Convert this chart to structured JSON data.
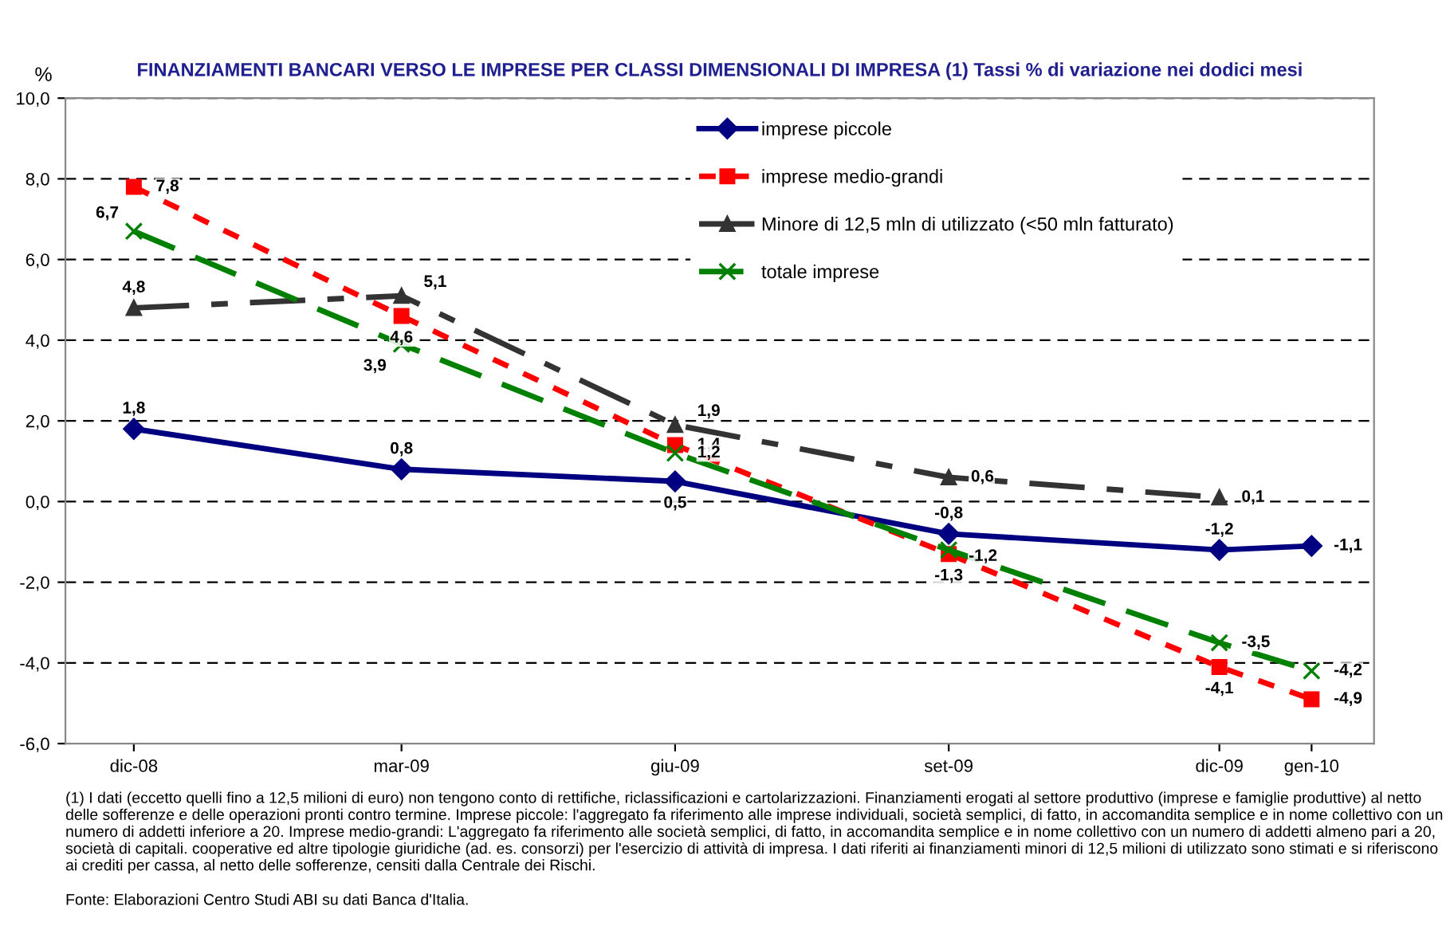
{
  "chart_data": {
    "type": "line",
    "title": "FINANZIAMENTI BANCARI VERSO LE IMPRESE PER CLASSI DIMENSIONALI DI IMPRESA (1) Tassi % di variazione nei dodici mesi",
    "ylabel": "%",
    "x": [
      "2008-12",
      "2009-03",
      "2009-06",
      "2009-09",
      "2009-12",
      "2010-01"
    ],
    "xlim": [
      "2008-11-08",
      "2010-01-22"
    ],
    "xticks": [
      {
        "value": "2008-12",
        "label": "dic-08"
      },
      {
        "value": "2009-03",
        "label": "mar-09"
      },
      {
        "value": "2009-06",
        "label": "giu-09"
      },
      {
        "value": "2009-09",
        "label": "set-09"
      },
      {
        "value": "2009-12",
        "label": "dic-09"
      },
      {
        "value": "2010-01",
        "label": "gen-10"
      }
    ],
    "ylim": [
      -6,
      10
    ],
    "yticks": [
      {
        "value": -6,
        "label": "-6,0"
      },
      {
        "value": -4,
        "label": "-4,0"
      },
      {
        "value": -2,
        "label": "-2,0"
      },
      {
        "value": 0,
        "label": "0,0"
      },
      {
        "value": 2,
        "label": "2,0"
      },
      {
        "value": 4,
        "label": "4,0"
      },
      {
        "value": 6,
        "label": "6,0"
      },
      {
        "value": 8,
        "label": "8,0"
      },
      {
        "value": 10,
        "label": "10,0"
      }
    ],
    "grid": "y",
    "legend": "top right",
    "series": [
      {
        "name": "imprese piccole",
        "color": "#000080",
        "marker": "diamond",
        "line_style": "solid",
        "values": [
          1.8,
          0.8,
          0.5,
          -0.8,
          -1.2,
          -1.1
        ],
        "value_labels": [
          "1,8",
          "0,8",
          "0,5",
          "-0,8",
          "-1,2",
          "-1,1"
        ]
      },
      {
        "name": "imprese medio-grandi",
        "color": "#ff0000",
        "marker": "square",
        "line_style": "dotted",
        "values": [
          7.8,
          4.6,
          1.4,
          -1.3,
          -4.1,
          -4.9
        ],
        "value_labels": [
          "7,8",
          "4,6",
          "1,4",
          "-1,3",
          "-4,1",
          "-4,9"
        ]
      },
      {
        "name": "Minore di 12,5 mln di utilizzato (<50 mln fatturato)",
        "color": "#333333",
        "marker": "triangle",
        "line_style": "dashdot",
        "values": [
          4.8,
          5.1,
          1.9,
          0.6,
          0.1,
          null
        ],
        "value_labels": [
          "4,8",
          "5,1",
          "1,9",
          "0,6",
          "0,1",
          null
        ]
      },
      {
        "name": "totale imprese",
        "color": "#008000",
        "marker": "cross",
        "line_style": "dashed",
        "values": [
          6.7,
          3.9,
          1.2,
          -1.2,
          -3.5,
          -4.2
        ],
        "value_labels": [
          "6,7",
          "3,9",
          "1,2",
          "-1,2",
          "-3,5",
          "-4,2"
        ]
      }
    ],
    "annotations": [
      "(1) I dati (eccetto quelli fino a 12,5 milioni di euro) non tengono conto di rettifiche, riclassificazioni e cartolarizzazioni. Finanziamenti erogati al settore produttivo (imprese e famiglie produttive) al netto delle sofferenze e delle operazioni pronti contro termine. Imprese piccole: l'aggregato fa riferimento alle imprese individuali, società semplici, di fatto, in accomandita semplice e in nome collettivo con un numero di addetti inferiore a 20. Imprese medio-grandi: L'aggregato fa riferimento alle società semplici, di fatto, in accomandita semplice e in nome collettivo con un numero di addetti almeno pari a 20, società di capitali. cooperative ed altre tipologie giuridiche (ad. es. consorzi) per l'esercizio di attività di impresa. I dati riferiti ai finanziamenti minori di 12,5 milioni di utilizzato sono stimati e si riferiscono ai crediti per cassa, al netto delle sofferenze, censiti dalla Centrale dei Rischi.",
      "Fonte: Elaborazioni Centro Studi ABI su dati Banca d'Italia."
    ]
  }
}
